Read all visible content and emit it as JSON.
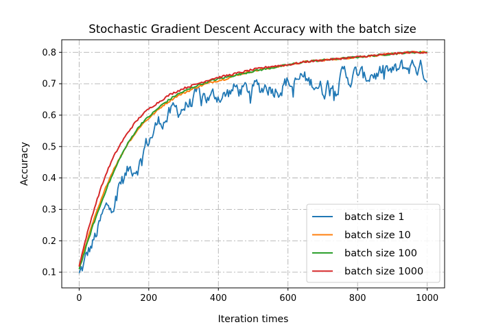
{
  "chart_data": {
    "type": "line",
    "title": "Stochastic Gradient Descent Accuracy with the batch size",
    "xlabel": "Iteration times",
    "ylabel": "Accuracy",
    "xlim": [
      -50,
      1050
    ],
    "ylim": [
      0.05,
      0.84
    ],
    "xticks": [
      0,
      200,
      400,
      600,
      800,
      1000
    ],
    "yticks": [
      0.1,
      0.2,
      0.3,
      0.4,
      0.5,
      0.6,
      0.7,
      0.8
    ],
    "grid": true,
    "grid_style": "dash-dot",
    "legend_position": "lower-right",
    "x_range": [
      0,
      1000
    ],
    "series": [
      {
        "name": "batch size 1",
        "color": "#1f77b4",
        "noisy": true,
        "points": [
          [
            0,
            0.09
          ],
          [
            10,
            0.11
          ],
          [
            20,
            0.14
          ],
          [
            30,
            0.17
          ],
          [
            40,
            0.19
          ],
          [
            50,
            0.22
          ],
          [
            60,
            0.25
          ],
          [
            70,
            0.28
          ],
          [
            80,
            0.3
          ],
          [
            90,
            0.32
          ],
          [
            100,
            0.33
          ],
          [
            110,
            0.36
          ],
          [
            120,
            0.39
          ],
          [
            130,
            0.4
          ],
          [
            140,
            0.42
          ],
          [
            150,
            0.43
          ],
          [
            160,
            0.44
          ],
          [
            170,
            0.45
          ],
          [
            180,
            0.46
          ],
          [
            190,
            0.5
          ],
          [
            200,
            0.52
          ],
          [
            210,
            0.54
          ],
          [
            220,
            0.56
          ],
          [
            230,
            0.58
          ],
          [
            240,
            0.59
          ],
          [
            260,
            0.6
          ],
          [
            280,
            0.61
          ],
          [
            300,
            0.63
          ],
          [
            320,
            0.64
          ],
          [
            340,
            0.65
          ],
          [
            360,
            0.66
          ],
          [
            380,
            0.65
          ],
          [
            400,
            0.67
          ],
          [
            420,
            0.66
          ],
          [
            440,
            0.68
          ],
          [
            460,
            0.68
          ],
          [
            480,
            0.67
          ],
          [
            500,
            0.69
          ],
          [
            520,
            0.68
          ],
          [
            540,
            0.7
          ],
          [
            560,
            0.69
          ],
          [
            580,
            0.7
          ],
          [
            600,
            0.71
          ],
          [
            620,
            0.69
          ],
          [
            640,
            0.72
          ],
          [
            660,
            0.7
          ],
          [
            680,
            0.71
          ],
          [
            700,
            0.68
          ],
          [
            720,
            0.71
          ],
          [
            740,
            0.7
          ],
          [
            760,
            0.73
          ],
          [
            780,
            0.72
          ],
          [
            800,
            0.73
          ],
          [
            820,
            0.71
          ],
          [
            840,
            0.74
          ],
          [
            860,
            0.73
          ],
          [
            880,
            0.74
          ],
          [
            900,
            0.73
          ],
          [
            920,
            0.74
          ],
          [
            940,
            0.75
          ],
          [
            960,
            0.76
          ],
          [
            980,
            0.75
          ],
          [
            1000,
            0.73
          ]
        ]
      },
      {
        "name": "batch size 10",
        "color": "#ff7f0e",
        "noisy": false,
        "points": [
          [
            0,
            0.12
          ],
          [
            20,
            0.19
          ],
          [
            40,
            0.26
          ],
          [
            60,
            0.32
          ],
          [
            80,
            0.38
          ],
          [
            100,
            0.43
          ],
          [
            120,
            0.47
          ],
          [
            140,
            0.51
          ],
          [
            160,
            0.54
          ],
          [
            180,
            0.57
          ],
          [
            200,
            0.59
          ],
          [
            220,
            0.61
          ],
          [
            240,
            0.63
          ],
          [
            260,
            0.645
          ],
          [
            280,
            0.66
          ],
          [
            300,
            0.67
          ],
          [
            340,
            0.69
          ],
          [
            380,
            0.705
          ],
          [
            420,
            0.715
          ],
          [
            460,
            0.73
          ],
          [
            500,
            0.74
          ],
          [
            550,
            0.75
          ],
          [
            600,
            0.76
          ],
          [
            650,
            0.77
          ],
          [
            700,
            0.775
          ],
          [
            750,
            0.78
          ],
          [
            800,
            0.785
          ],
          [
            850,
            0.79
          ],
          [
            900,
            0.795
          ],
          [
            950,
            0.8
          ],
          [
            1000,
            0.8
          ]
        ]
      },
      {
        "name": "batch size 100",
        "color": "#2ca02c",
        "noisy": false,
        "points": [
          [
            0,
            0.11
          ],
          [
            20,
            0.18
          ],
          [
            40,
            0.25
          ],
          [
            60,
            0.31
          ],
          [
            80,
            0.37
          ],
          [
            100,
            0.42
          ],
          [
            120,
            0.47
          ],
          [
            140,
            0.51
          ],
          [
            160,
            0.545
          ],
          [
            180,
            0.575
          ],
          [
            200,
            0.595
          ],
          [
            220,
            0.615
          ],
          [
            240,
            0.635
          ],
          [
            260,
            0.65
          ],
          [
            280,
            0.665
          ],
          [
            300,
            0.675
          ],
          [
            340,
            0.695
          ],
          [
            380,
            0.71
          ],
          [
            420,
            0.72
          ],
          [
            460,
            0.73
          ],
          [
            500,
            0.74
          ],
          [
            550,
            0.75
          ],
          [
            600,
            0.76
          ],
          [
            650,
            0.77
          ],
          [
            700,
            0.775
          ],
          [
            750,
            0.78
          ],
          [
            800,
            0.785
          ],
          [
            850,
            0.79
          ],
          [
            900,
            0.795
          ],
          [
            950,
            0.8
          ],
          [
            1000,
            0.8
          ]
        ]
      },
      {
        "name": "batch size 1000",
        "color": "#d62728",
        "noisy": false,
        "points": [
          [
            0,
            0.12
          ],
          [
            20,
            0.21
          ],
          [
            40,
            0.29
          ],
          [
            60,
            0.36
          ],
          [
            80,
            0.42
          ],
          [
            100,
            0.47
          ],
          [
            120,
            0.51
          ],
          [
            140,
            0.545
          ],
          [
            160,
            0.575
          ],
          [
            180,
            0.6
          ],
          [
            200,
            0.62
          ],
          [
            220,
            0.635
          ],
          [
            240,
            0.65
          ],
          [
            260,
            0.665
          ],
          [
            280,
            0.675
          ],
          [
            300,
            0.685
          ],
          [
            340,
            0.7
          ],
          [
            380,
            0.715
          ],
          [
            420,
            0.725
          ],
          [
            460,
            0.735
          ],
          [
            500,
            0.745
          ],
          [
            550,
            0.755
          ],
          [
            600,
            0.76
          ],
          [
            650,
            0.77
          ],
          [
            700,
            0.775
          ],
          [
            750,
            0.78
          ],
          [
            800,
            0.785
          ],
          [
            850,
            0.79
          ],
          [
            900,
            0.795
          ],
          [
            950,
            0.8
          ],
          [
            1000,
            0.8
          ]
        ]
      }
    ]
  }
}
